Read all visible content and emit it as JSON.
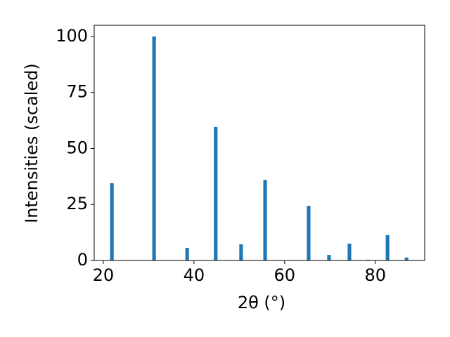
{
  "chart_data": {
    "type": "bar",
    "x_label": "2θ (°)",
    "y_label": "Intensities (scaled)",
    "x": [
      21.9,
      31.2,
      38.5,
      44.8,
      50.4,
      55.7,
      65.3,
      69.8,
      74.3,
      78.4,
      82.7,
      86.9
    ],
    "values": [
      34.5,
      100,
      5.6,
      59.6,
      7.2,
      36.0,
      24.4,
      2.5,
      7.5,
      0.3,
      11.3,
      1.3
    ],
    "color": "#1f77b4",
    "xlim": [
      18,
      90.9
    ],
    "xticks": [
      20,
      40,
      60,
      80
    ],
    "ylim": [
      0,
      105
    ],
    "yticks": [
      0,
      25,
      50,
      75,
      100
    ],
    "grid": false
  }
}
